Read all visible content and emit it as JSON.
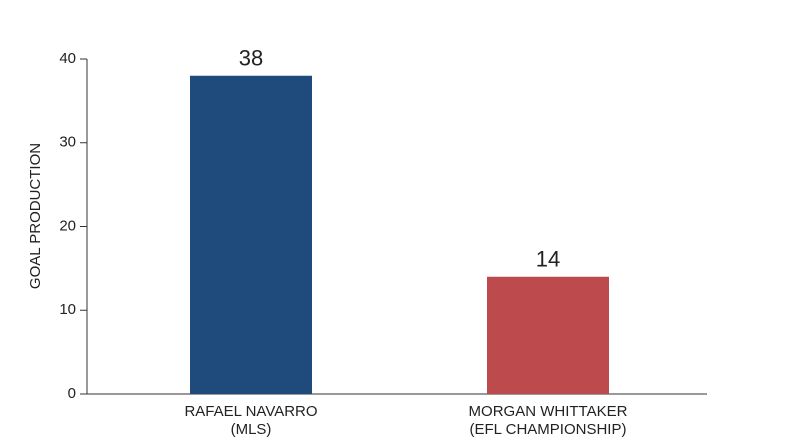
{
  "chart_data": {
    "type": "bar",
    "y_label": "GOAL PRODUCTION",
    "categories": [
      [
        "RAFAEL NAVARRO",
        "(MLS)"
      ],
      [
        "MORGAN WHITTAKER",
        "(EFL CHAMPIONSHIP)"
      ]
    ],
    "values": [
      38,
      14
    ],
    "colors": [
      "#1f4b7c",
      "#bd4a4c"
    ],
    "ylim": [
      0,
      40
    ],
    "yticks": [
      0,
      10,
      20,
      30,
      40
    ],
    "grid": false
  }
}
